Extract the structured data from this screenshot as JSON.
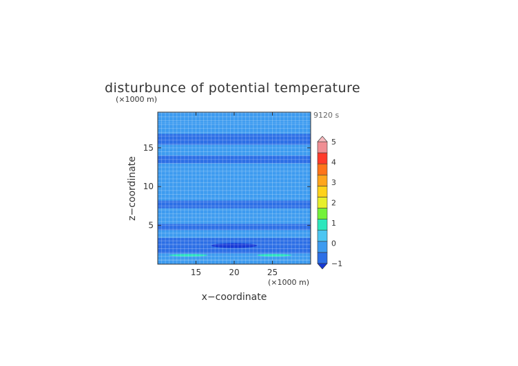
{
  "chart_data": {
    "type": "heatmap",
    "title": "disturbunce of potential temperature",
    "xlabel": "x−coordinate",
    "ylabel": "z−coordinate",
    "x_unit": "(×1000 m)",
    "y_unit": "(×1000 m)",
    "time_label": "9120 s",
    "xlim": [
      10,
      30
    ],
    "ylim": [
      0,
      19.6
    ],
    "x_ticks": [
      15,
      20,
      25
    ],
    "y_ticks": [
      5,
      10,
      15
    ],
    "grid": true,
    "colorbar": {
      "ticks": [
        -1,
        0,
        1,
        2,
        3,
        4,
        5
      ],
      "levels": [
        -1,
        -0.5,
        0,
        0.5,
        1,
        1.5,
        2,
        2.5,
        3,
        3.5,
        4,
        4.5,
        5
      ],
      "colors": [
        "#1538d6",
        "#2c6fe6",
        "#3d9bf0",
        "#4cc6f2",
        "#2de7bd",
        "#73f23a",
        "#e7ef2b",
        "#ffd21a",
        "#ffa51c",
        "#ff7419",
        "#ff3a2a",
        "#f08e93",
        "#f6b9bd"
      ],
      "extend": "both"
    },
    "color_scale": {
      "strong_negative": "#1538d6",
      "negative": "#2c6fe6",
      "near_zero": "#3d9bf0",
      "slightly_positive": "#4cc6f2",
      "positive": "#2de7bd"
    },
    "field_bands": [
      {
        "z": [
          0,
          0.6
        ],
        "value": -0.1
      },
      {
        "z": [
          0.6,
          1.4
        ],
        "value": 0.1
      },
      {
        "z": [
          1.4,
          2.0
        ],
        "value": -0.2
      },
      {
        "z": [
          2.0,
          2.6
        ],
        "value": -0.3
      },
      {
        "z": [
          2.6,
          3.4
        ],
        "value": -0.15
      },
      {
        "z": [
          3.4,
          4.4
        ],
        "value": -0.05
      },
      {
        "z": [
          4.4,
          5.2
        ],
        "value": -0.2
      },
      {
        "z": [
          5.2,
          6.2
        ],
        "value": -0.05
      },
      {
        "z": [
          6.2,
          7.2
        ],
        "value": 0.0
      },
      {
        "z": [
          7.2,
          8.2
        ],
        "value": -0.15
      },
      {
        "z": [
          8.2,
          9.4
        ],
        "value": -0.05
      },
      {
        "z": [
          9.4,
          10.6
        ],
        "value": 0.0
      },
      {
        "z": [
          10.6,
          11.8
        ],
        "value": -0.1
      },
      {
        "z": [
          11.8,
          13.0
        ],
        "value": -0.05
      },
      {
        "z": [
          13.0,
          14.0
        ],
        "value": -0.15
      },
      {
        "z": [
          14.0,
          15.4
        ],
        "value": -0.05
      },
      {
        "z": [
          15.4,
          16.8
        ],
        "value": -0.15
      },
      {
        "z": [
          16.8,
          18.2
        ],
        "value": -0.05
      },
      {
        "z": [
          18.2,
          19.6
        ],
        "value": -0.1
      }
    ],
    "features": [
      {
        "kind": "warm-streak",
        "x": [
          11.5,
          16.5
        ],
        "z": [
          1.0,
          1.3
        ],
        "value": 0.6
      },
      {
        "kind": "warm-streak",
        "x": [
          23.0,
          27.5
        ],
        "z": [
          1.0,
          1.3
        ],
        "value": 0.6
      },
      {
        "kind": "cool-blob",
        "x": [
          17.0,
          23.0
        ],
        "z": [
          2.1,
          2.7
        ],
        "value": -0.6
      },
      {
        "kind": "bulge",
        "x": [
          17.0,
          23.5
        ],
        "z": [
          9.4,
          11.0
        ],
        "value": -0.05
      }
    ]
  }
}
